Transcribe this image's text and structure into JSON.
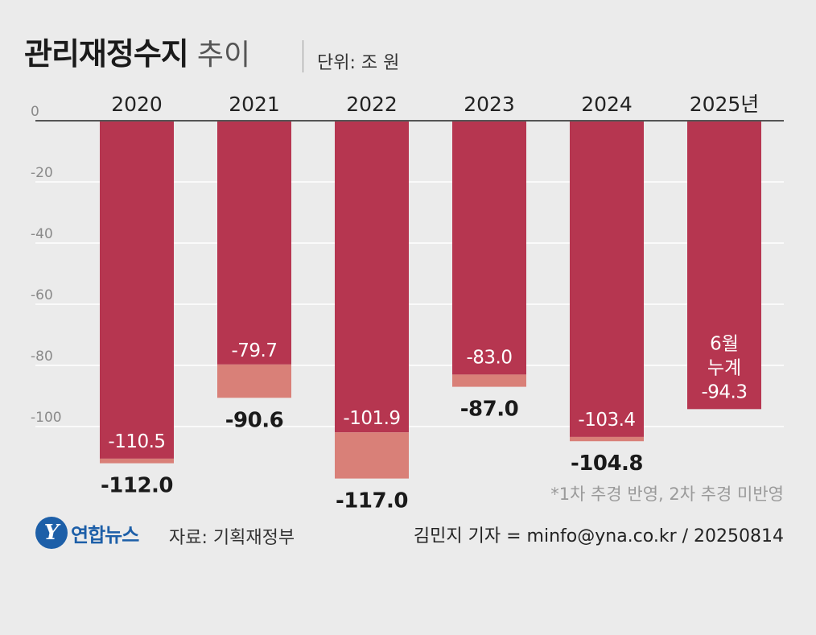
{
  "header": {
    "title": "관리재정수지",
    "subtitle": "추이",
    "unit": "단위: 조 원"
  },
  "chart_data": {
    "type": "bar",
    "title": "관리재정수지 추이",
    "unit": "조 원",
    "categories": [
      "2020",
      "2021",
      "2022",
      "2023",
      "2024",
      "2025년"
    ],
    "yticks": [
      "0",
      "-20",
      "-40",
      "-60",
      "-80",
      "-100"
    ],
    "ylim": [
      -120,
      0
    ],
    "series": [
      {
        "name": "total",
        "values": [
          -112.0,
          -90.6,
          -117.0,
          -87.0,
          -104.8,
          -94.3
        ],
        "labels": [
          "-112.0",
          "-90.6",
          "-117.0",
          "-87.0",
          "-104.8",
          null
        ]
      },
      {
        "name": "base",
        "values": [
          -110.5,
          -79.7,
          -101.9,
          -83.0,
          -103.4,
          -94.3
        ],
        "labels": [
          "-110.5",
          "-79.7",
          "-101.9",
          "-83.0",
          "-103.4",
          "-94.3"
        ]
      }
    ],
    "annotations": [
      {
        "category": "2025년",
        "lines": [
          "6월",
          "누계"
        ]
      }
    ],
    "colors": {
      "base": "#b63650",
      "extra": "#d98078",
      "grid": "#ffffff",
      "axis": "#555555"
    }
  },
  "footer": {
    "footnote": "*1차 추경 반영, 2차 추경 미반영",
    "logo_mark": "Y",
    "logo_text": "연합뉴스",
    "source": "자료: 기획재정부",
    "credit": "김민지 기자 = minfo@yna.co.kr / 20250814"
  }
}
